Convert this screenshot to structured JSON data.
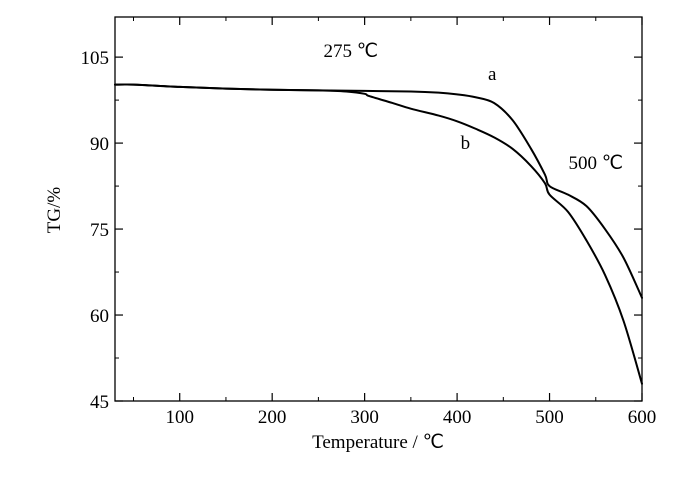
{
  "chart_data": {
    "type": "line",
    "xlabel": "Temperature / ℃",
    "ylabel": "TG/%",
    "xlim": [
      30,
      600
    ],
    "ylim": [
      45,
      112
    ],
    "x_ticks": [
      100,
      200,
      300,
      400,
      500,
      600
    ],
    "y_ticks": [
      45,
      60,
      75,
      90,
      105
    ],
    "x_tick_labels": [
      "100",
      "200",
      "300",
      "400",
      "500",
      "600"
    ],
    "y_tick_labels": [
      "45",
      "60",
      "75",
      "90",
      "105"
    ],
    "grid": false,
    "series": [
      {
        "name": "a",
        "x": [
          30,
          50,
          100,
          150,
          200,
          250,
          300,
          350,
          380,
          400,
          420,
          440,
          460,
          480,
          495,
          500,
          520,
          540,
          560,
          580,
          600
        ],
        "y": [
          100.2,
          100.2,
          99.8,
          99.5,
          99.3,
          99.2,
          99.1,
          99.0,
          98.8,
          98.5,
          98.0,
          97.0,
          94.0,
          89.0,
          84.5,
          82.5,
          81.0,
          79.0,
          75.0,
          70.0,
          63.0
        ]
      },
      {
        "name": "b",
        "x": [
          30,
          50,
          100,
          150,
          200,
          250,
          280,
          300,
          305,
          330,
          350,
          380,
          400,
          420,
          440,
          460,
          480,
          495,
          500,
          520,
          540,
          560,
          580,
          600
        ],
        "y": [
          100.2,
          100.2,
          99.8,
          99.5,
          99.3,
          99.2,
          99.0,
          98.6,
          98.2,
          97.0,
          96.0,
          94.8,
          93.8,
          92.5,
          91.0,
          89.0,
          86.0,
          83.0,
          81.0,
          78.0,
          73.0,
          67.0,
          59.0,
          48.0
        ]
      }
    ],
    "annotations": [
      {
        "text": "275 ℃",
        "x": 285,
        "y": 105
      },
      {
        "text": "a",
        "x": 438,
        "y": 101
      },
      {
        "text": "b",
        "x": 409,
        "y": 89
      },
      {
        "text": "500 ℃",
        "x": 550,
        "y": 85.5
      }
    ]
  }
}
